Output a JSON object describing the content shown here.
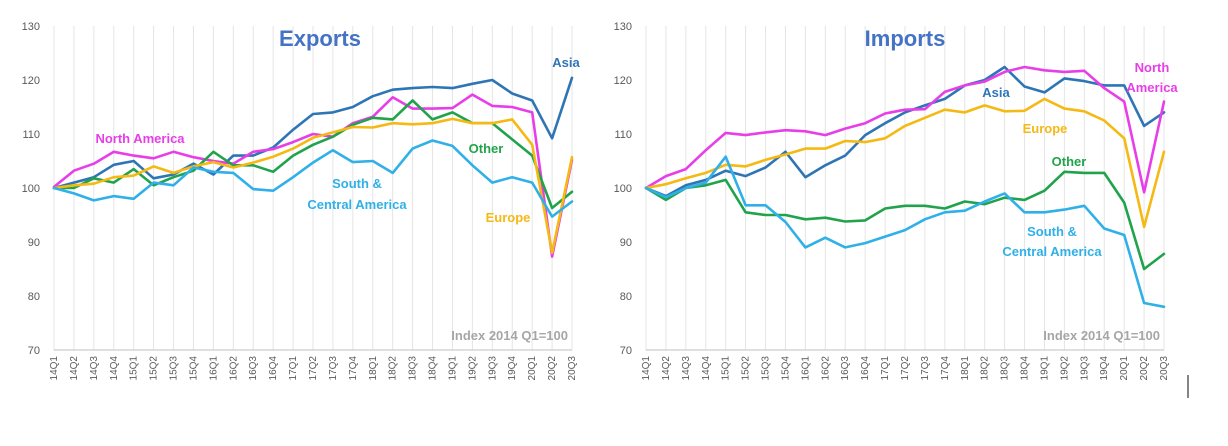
{
  "chart_data": [
    {
      "type": "line",
      "title": "Exports",
      "annotation": "Index 2014 Q1=100",
      "ylim": [
        70,
        130
      ],
      "yticks": [
        70,
        80,
        90,
        100,
        110,
        120,
        130
      ],
      "grid": "vertical",
      "categories": [
        "14Q1",
        "14Q2",
        "14Q3",
        "14Q4",
        "15Q1",
        "15Q2",
        "15Q3",
        "15Q4",
        "16Q1",
        "16Q2",
        "16Q3",
        "16Q4",
        "17Q1",
        "17Q2",
        "17Q3",
        "17Q4",
        "18Q1",
        "18Q2",
        "18Q3",
        "18Q4",
        "19Q1",
        "19Q2",
        "19Q3",
        "19Q4",
        "20Q1",
        "20Q2",
        "20Q3"
      ],
      "series": [
        {
          "name": "Asia",
          "color": "#2e75b6",
          "values": [
            100,
            101,
            102,
            104.3,
            105,
            101.8,
            102.5,
            104.5,
            102.5,
            106,
            106,
            107.5,
            110.8,
            113.7,
            114,
            115,
            117,
            118.2,
            118.5,
            118.7,
            118.5,
            119.3,
            120,
            117.5,
            116.2,
            109.2,
            120.4
          ]
        },
        {
          "name": "North America",
          "color": "#e83ee8",
          "values": [
            100.2,
            103.2,
            104.5,
            106.7,
            106,
            105.5,
            106.7,
            105.7,
            105,
            104.5,
            106.7,
            107.2,
            108.5,
            110,
            109.5,
            112,
            113.2,
            116.8,
            114.7,
            114.7,
            114.8,
            117.3,
            115.2,
            115,
            114,
            87.3,
            105.2
          ]
        },
        {
          "name": "Other",
          "color": "#21a34b",
          "values": [
            100,
            100,
            101.8,
            101,
            103.5,
            100.5,
            102,
            103.2,
            106.7,
            104.2,
            104.2,
            103,
            106,
            108,
            109.5,
            111.7,
            113,
            112.7,
            116.2,
            112.7,
            114,
            112,
            112,
            109,
            106,
            96.3,
            99.3
          ]
        },
        {
          "name": "Europe",
          "color": "#f5b914",
          "values": [
            100,
            100.5,
            100.8,
            102,
            102.3,
            104,
            102.8,
            104,
            104.8,
            103.8,
            104.7,
            105.8,
            107.3,
            109.3,
            110.3,
            111.3,
            111.2,
            112,
            111.8,
            112,
            112.8,
            112,
            112,
            112.7,
            108,
            88,
            105.7
          ]
        },
        {
          "name": "South & Central America",
          "color": "#30b0e8",
          "values": [
            100,
            99,
            97.7,
            98.5,
            98,
            101,
            100.5,
            103.8,
            103,
            102.8,
            99.8,
            99.5,
            102,
            104.7,
            107,
            104.8,
            105,
            102.8,
            107.3,
            108.8,
            107.8,
            104.2,
            101,
            102,
            101,
            94.7,
            97.5
          ]
        }
      ]
    },
    {
      "type": "line",
      "title": "Imports",
      "annotation": "Index 2014 Q1=100",
      "ylim": [
        70,
        130
      ],
      "yticks": [
        70,
        80,
        90,
        100,
        110,
        120,
        130
      ],
      "grid": "vertical",
      "categories": [
        "14Q1",
        "14Q2",
        "14Q3",
        "14Q4",
        "15Q1",
        "15Q2",
        "15Q3",
        "15Q4",
        "16Q1",
        "16Q2",
        "16Q3",
        "16Q4",
        "17Q1",
        "17Q2",
        "17Q3",
        "17Q4",
        "18Q1",
        "18Q2",
        "18Q3",
        "18Q4",
        "19Q1",
        "19Q2",
        "19Q3",
        "19Q4",
        "20Q1",
        "20Q2",
        "20Q3"
      ],
      "series": [
        {
          "name": "Asia",
          "color": "#2e75b6",
          "values": [
            100,
            98.5,
            100.5,
            101.5,
            103.2,
            102.2,
            103.8,
            106.7,
            102,
            104.2,
            106,
            109.8,
            112,
            114,
            115.3,
            116.5,
            119,
            120,
            122.4,
            118.8,
            117.7,
            120.3,
            119.8,
            119,
            119,
            111.5,
            114
          ]
        },
        {
          "name": "North America",
          "color": "#e83ee8",
          "values": [
            100,
            102.2,
            103.5,
            107,
            110.2,
            109.8,
            110.3,
            110.7,
            110.5,
            109.8,
            111,
            112,
            113.8,
            114.5,
            114.6,
            117.8,
            119,
            119.7,
            121.5,
            122.4,
            121.8,
            121.5,
            121.7,
            118.5,
            116,
            99.2,
            116
          ]
        },
        {
          "name": "Europe",
          "color": "#f5b914",
          "values": [
            100,
            100.7,
            101.8,
            102.8,
            104.3,
            104,
            105.2,
            106.2,
            107.3,
            107.3,
            108.7,
            108.5,
            109.2,
            111.5,
            113,
            114.5,
            114,
            115.3,
            114.2,
            114.3,
            116.5,
            114.7,
            114.2,
            112.5,
            109.2,
            92.8,
            106.7
          ]
        },
        {
          "name": "Other",
          "color": "#21a34b",
          "values": [
            100,
            97.8,
            100,
            100.5,
            101.5,
            95.5,
            95,
            95,
            94.2,
            94.5,
            93.8,
            94,
            96.2,
            96.7,
            96.7,
            96.2,
            97.5,
            97,
            98.2,
            97.8,
            99.5,
            103,
            102.8,
            102.8,
            97.3,
            85,
            87.8
          ]
        },
        {
          "name": "South & Central America",
          "color": "#30b0e8",
          "values": [
            100,
            98.3,
            100,
            101,
            105.8,
            96.8,
            96.8,
            93.7,
            89,
            90.8,
            89,
            89.8,
            91,
            92.2,
            94.2,
            95.5,
            95.8,
            97.5,
            99,
            95.5,
            95.5,
            96,
            96.7,
            92.5,
            91.3,
            78.7,
            78
          ]
        }
      ]
    }
  ]
}
